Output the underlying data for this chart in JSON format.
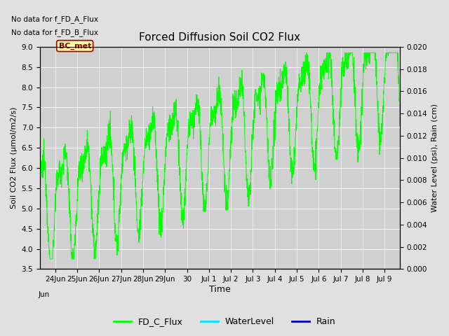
{
  "title": "Forced Diffusion Soil CO2 Flux",
  "xlabel": "Time",
  "ylabel_left": "Soil CO2 Flux (μmol/m2/s)",
  "ylabel_right": "Water Level (psi), Rain (cm)",
  "no_data_text_1": "No data for f_FD_A_Flux",
  "no_data_text_2": "No data for f_FD_B_Flux",
  "bc_met_label": "BC_met",
  "ylim_left": [
    3.5,
    9.0
  ],
  "ylim_right": [
    0.0,
    0.02
  ],
  "xlim": [
    23.3,
    39.7
  ],
  "xtick_positions": [
    24,
    25,
    26,
    27,
    28,
    29,
    30,
    31,
    32,
    33,
    34,
    35,
    36,
    37,
    38,
    39
  ],
  "xtick_labels": [
    "24Jun",
    "25Jun",
    "26Jun",
    "27Jun",
    "28Jun",
    "29Jun",
    "30",
    "Jul 1",
    "Jul 2",
    "Jul 3",
    "Jul 4",
    "Jul 5",
    "Jul 6",
    "Jul 7",
    "Jul 8",
    "Jul 9"
  ],
  "fig_bg": "#e0e0e0",
  "plot_bg": "#d0d0d0",
  "grid_color": "#ffffff",
  "flux_color": "#00ff00",
  "water_color": "#00e5ff",
  "rain_color": "#0000bb",
  "legend_items": [
    "FD_C_Flux",
    "WaterLevel",
    "Rain"
  ],
  "legend_colors": [
    "#00ff00",
    "#00e5ff",
    "#0000bb"
  ]
}
